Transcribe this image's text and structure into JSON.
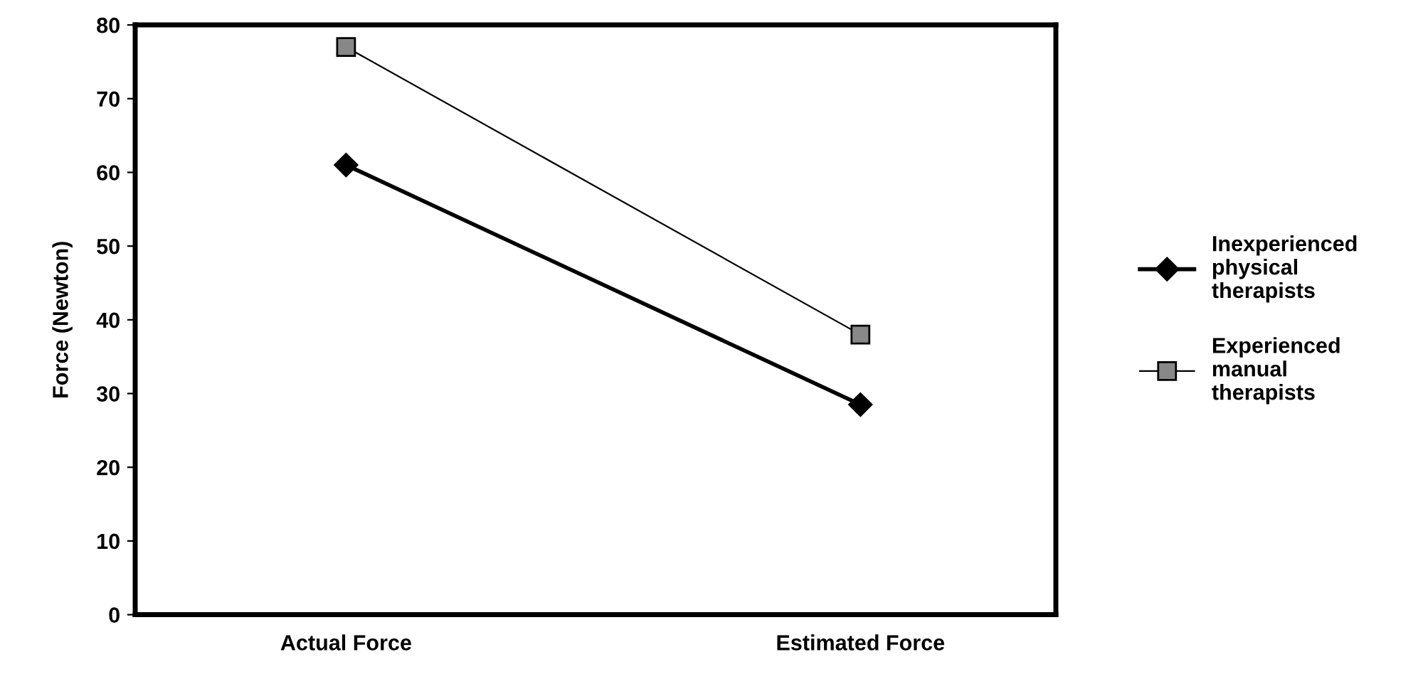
{
  "chart_data": {
    "type": "line",
    "ylabel": "Force (Newton)",
    "categories": [
      "Actual Force",
      "Estimated Force"
    ],
    "series": [
      {
        "name": "Inexperienced\nphysical\ntherapists",
        "color": "#000000",
        "values": [
          61,
          28.5
        ],
        "marker": "diamond",
        "line_style": "solid"
      },
      {
        "name": "Experienced\nmanual\ntherapists",
        "color": "#000000",
        "values": [
          77,
          38
        ],
        "marker": "square",
        "line_style": "solid"
      }
    ],
    "ylim": [
      0,
      80
    ],
    "yticks": [
      0,
      10,
      20,
      30,
      40,
      50,
      60,
      70,
      80
    ],
    "legend": "right",
    "grid": false
  }
}
